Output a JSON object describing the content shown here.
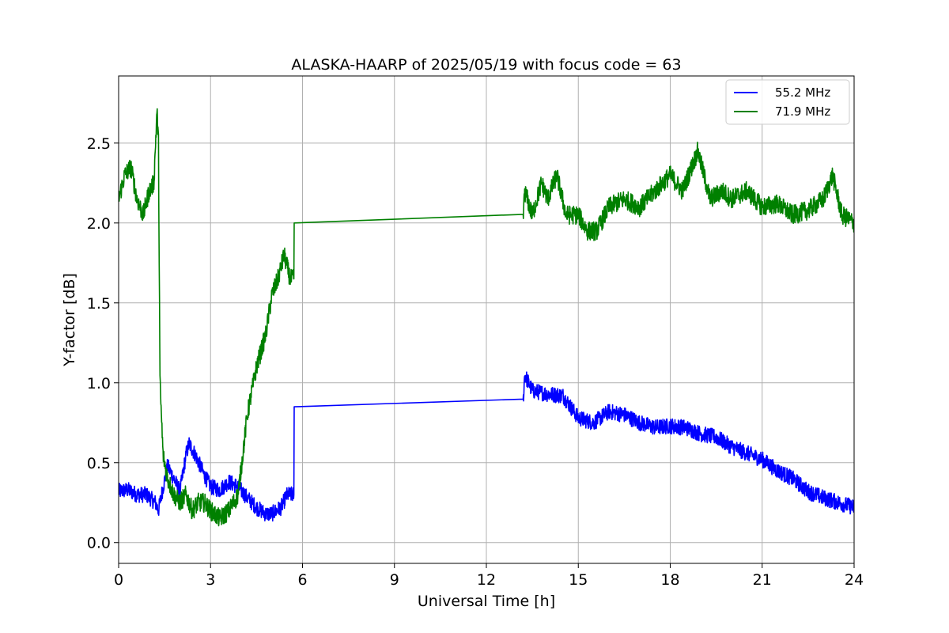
{
  "chart_data": {
    "type": "line",
    "title": "ALASKA-HAARP of 2025/05/19 with focus code = 63",
    "xlabel": "Universal Time [h]",
    "ylabel": "Y-factor [dB]",
    "xlim": [
      0,
      24
    ],
    "ylim": [
      -0.13,
      2.92
    ],
    "xticks": [
      0,
      3,
      6,
      9,
      12,
      15,
      18,
      21,
      24
    ],
    "yticks": [
      0.0,
      0.5,
      1.0,
      1.5,
      2.0,
      2.5
    ],
    "xtick_labels": [
      "0",
      "3",
      "6",
      "9",
      "12",
      "15",
      "18",
      "21",
      "24"
    ],
    "ytick_labels": [
      "0.0",
      "0.5",
      "1.0",
      "1.5",
      "2.0",
      "2.5"
    ],
    "grid": true,
    "legend_position": "top-right",
    "series": [
      {
        "name": "55.2 MHz",
        "color": "#0000ff",
        "x": [
          0,
          0.3,
          0.6,
          0.9,
          1.2,
          1.3,
          1.4,
          1.6,
          1.8,
          2.0,
          2.2,
          2.3,
          2.5,
          2.8,
          3.0,
          3.3,
          3.6,
          3.9,
          4.2,
          4.5,
          4.8,
          5.0,
          5.3,
          5.5,
          5.72,
          5.73,
          13.2,
          13.25,
          13.5,
          14.0,
          14.5,
          15.0,
          15.5,
          16.0,
          16.5,
          17.0,
          17.5,
          18.0,
          18.5,
          19.0,
          19.5,
          20.0,
          20.5,
          21.0,
          21.5,
          22.0,
          22.5,
          23.0,
          23.5,
          24.0
        ],
        "y": [
          0.32,
          0.33,
          0.3,
          0.3,
          0.25,
          0.2,
          0.3,
          0.48,
          0.4,
          0.32,
          0.55,
          0.62,
          0.55,
          0.42,
          0.35,
          0.33,
          0.38,
          0.35,
          0.28,
          0.22,
          0.18,
          0.18,
          0.22,
          0.3,
          0.3,
          0.85,
          0.87,
          1.05,
          0.95,
          0.93,
          0.92,
          0.78,
          0.75,
          0.82,
          0.8,
          0.75,
          0.72,
          0.73,
          0.72,
          0.68,
          0.66,
          0.6,
          0.56,
          0.52,
          0.45,
          0.4,
          0.32,
          0.28,
          0.25,
          0.22
        ],
        "noise": 0.05
      },
      {
        "name": "71.9 MHz",
        "color": "#008000",
        "x": [
          0,
          0.2,
          0.4,
          0.6,
          0.8,
          1.0,
          1.15,
          1.25,
          1.3,
          1.35,
          1.45,
          1.6,
          1.8,
          2.0,
          2.2,
          2.4,
          2.6,
          2.8,
          3.0,
          3.3,
          3.6,
          3.9,
          4.2,
          4.5,
          4.8,
          5.0,
          5.2,
          5.4,
          5.6,
          5.72,
          5.73,
          13.2,
          13.25,
          13.5,
          13.8,
          14.0,
          14.3,
          14.6,
          15.0,
          15.3,
          15.6,
          16.0,
          16.5,
          17.0,
          17.5,
          18.0,
          18.4,
          18.9,
          19.3,
          19.7,
          20.0,
          20.5,
          21.0,
          21.5,
          22.0,
          22.5,
          23.0,
          23.3,
          23.6,
          24.0
        ],
        "y": [
          2.15,
          2.3,
          2.35,
          2.15,
          2.05,
          2.2,
          2.25,
          2.7,
          2.5,
          1.0,
          0.55,
          0.4,
          0.3,
          0.25,
          0.3,
          0.2,
          0.25,
          0.25,
          0.2,
          0.15,
          0.2,
          0.3,
          0.8,
          1.1,
          1.3,
          1.55,
          1.65,
          1.8,
          1.65,
          1.65,
          2.0,
          2.02,
          2.2,
          2.05,
          2.25,
          2.15,
          2.3,
          2.05,
          2.05,
          1.95,
          1.95,
          2.1,
          2.15,
          2.1,
          2.2,
          2.3,
          2.2,
          2.45,
          2.15,
          2.2,
          2.15,
          2.2,
          2.1,
          2.12,
          2.05,
          2.08,
          2.15,
          2.3,
          2.05,
          2.0
        ],
        "noise": 0.06
      }
    ]
  }
}
